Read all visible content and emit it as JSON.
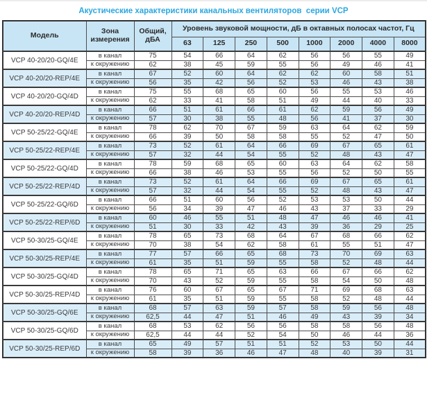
{
  "title": "Акустические характеристики канальных вентиляторов  серии VCP",
  "colors": {
    "accent_title": "#2ba7df",
    "header_bg": "#c8e5f5",
    "highlight_row_bg": "#d9edf9",
    "border": "#4d4d4d",
    "text": "#3a3a3a"
  },
  "table": {
    "headers": {
      "model": "Модель",
      "zone": "Зона измерения",
      "total": "Общий, дБА",
      "group": "Уровень звуковой мощности, дБ в октавных полосах частот, Гц",
      "frequencies": [
        "63",
        "125",
        "250",
        "500",
        "1000",
        "2000",
        "4000",
        "8000"
      ]
    },
    "zone_labels": {
      "duct": "в канал",
      "ambient": "к окружению"
    },
    "models": [
      {
        "name": "VCP 40-20/20-GQ/4E",
        "highlight": false,
        "duct": {
          "total": "75",
          "bands": [
            54,
            66,
            64,
            62,
            56,
            56,
            55,
            49
          ]
        },
        "ambient": {
          "total": "62",
          "bands": [
            38,
            45,
            59,
            55,
            56,
            49,
            46,
            41
          ]
        }
      },
      {
        "name": "VCP 40-20/20-REP/4E",
        "highlight": true,
        "duct": {
          "total": "67",
          "bands": [
            52,
            60,
            64,
            62,
            62,
            60,
            58,
            51
          ]
        },
        "ambient": {
          "total": "56",
          "bands": [
            35,
            42,
            56,
            52,
            53,
            46,
            43,
            38
          ]
        }
      },
      {
        "name": "VCP 40-20/20-GQ/4D",
        "highlight": false,
        "duct": {
          "total": "75",
          "bands": [
            55,
            68,
            65,
            60,
            56,
            55,
            53,
            46
          ]
        },
        "ambient": {
          "total": "62",
          "bands": [
            33,
            41,
            58,
            51,
            49,
            44,
            40,
            33
          ]
        }
      },
      {
        "name": "VCP 40-20/20-REP/4D",
        "highlight": true,
        "duct": {
          "total": "66",
          "bands": [
            51,
            61,
            66,
            61,
            62,
            59,
            56,
            49
          ]
        },
        "ambient": {
          "total": "57",
          "bands": [
            30,
            38,
            55,
            48,
            56,
            41,
            37,
            30
          ]
        }
      },
      {
        "name": "VCP 50-25/22-GQ/4E",
        "highlight": false,
        "duct": {
          "total": "78",
          "bands": [
            62,
            70,
            67,
            59,
            63,
            64,
            62,
            59
          ]
        },
        "ambient": {
          "total": "66",
          "bands": [
            39,
            50,
            58,
            58,
            55,
            52,
            47,
            50
          ]
        }
      },
      {
        "name": "VCP 50-25/22-REP/4E",
        "highlight": true,
        "duct": {
          "total": "73",
          "bands": [
            52,
            61,
            64,
            66,
            69,
            67,
            65,
            61
          ]
        },
        "ambient": {
          "total": "57",
          "bands": [
            32,
            44,
            54,
            55,
            52,
            48,
            43,
            47
          ]
        }
      },
      {
        "name": "VCP 50-25/22-GQ/4D",
        "highlight": false,
        "duct": {
          "total": "78",
          "bands": [
            59,
            68,
            65,
            60,
            63,
            64,
            62,
            58
          ]
        },
        "ambient": {
          "total": "66",
          "bands": [
            38,
            46,
            53,
            55,
            56,
            52,
            50,
            55
          ]
        }
      },
      {
        "name": "VCP 50-25/22-REP/4D",
        "highlight": true,
        "duct": {
          "total": "73",
          "bands": [
            52,
            61,
            64,
            66,
            69,
            67,
            65,
            61
          ]
        },
        "ambient": {
          "total": "57",
          "bands": [
            32,
            44,
            54,
            55,
            52,
            48,
            43,
            47
          ]
        }
      },
      {
        "name": "VCP 50-25/22-GQ/6D",
        "highlight": false,
        "duct": {
          "total": "66",
          "bands": [
            51,
            60,
            56,
            52,
            53,
            53,
            50,
            44
          ]
        },
        "ambient": {
          "total": "56",
          "bands": [
            34,
            39,
            47,
            46,
            43,
            37,
            33,
            29
          ]
        }
      },
      {
        "name": "VCP 50-25/22-REP/6D",
        "highlight": true,
        "duct": {
          "total": "60",
          "bands": [
            46,
            55,
            51,
            48,
            47,
            46,
            46,
            41
          ]
        },
        "ambient": {
          "total": "51",
          "bands": [
            30,
            33,
            42,
            43,
            39,
            36,
            29,
            25
          ]
        }
      },
      {
        "name": "VCP 50-30/25-GQ/4E",
        "highlight": false,
        "duct": {
          "total": "78",
          "bands": [
            65,
            73,
            68,
            64,
            67,
            68,
            66,
            62
          ]
        },
        "ambient": {
          "total": "70",
          "bands": [
            38,
            54,
            62,
            58,
            61,
            55,
            51,
            47
          ]
        }
      },
      {
        "name": "VCP 50-30/25-REP/4E",
        "highlight": true,
        "duct": {
          "total": "77",
          "bands": [
            57,
            66,
            65,
            68,
            73,
            70,
            69,
            63
          ]
        },
        "ambient": {
          "total": "61",
          "bands": [
            35,
            51,
            59,
            55,
            58,
            52,
            48,
            44
          ]
        }
      },
      {
        "name": "VCP 50-30/25-GQ/4D",
        "highlight": false,
        "duct": {
          "total": "78",
          "bands": [
            65,
            71,
            65,
            63,
            66,
            67,
            66,
            62
          ]
        },
        "ambient": {
          "total": "70",
          "bands": [
            43,
            52,
            59,
            55,
            58,
            54,
            50,
            48
          ]
        }
      },
      {
        "name": "VCP 50-30/25-REP/4D",
        "highlight": false,
        "duct": {
          "total": "76",
          "bands": [
            60,
            67,
            65,
            67,
            71,
            69,
            68,
            63
          ]
        },
        "ambient": {
          "total": "61",
          "bands": [
            35,
            51,
            59,
            55,
            58,
            52,
            48,
            44
          ]
        }
      },
      {
        "name": "VCP 50-30/25-GQ/6E",
        "highlight": true,
        "duct": {
          "total": "68",
          "bands": [
            57,
            63,
            59,
            57,
            58,
            59,
            56,
            48
          ]
        },
        "ambient": {
          "total": "62,5",
          "bands": [
            44,
            47,
            51,
            46,
            49,
            43,
            39,
            34
          ]
        }
      },
      {
        "name": "VCP 50-30/25-GQ/6D",
        "highlight": false,
        "duct": {
          "total": "68",
          "bands": [
            53,
            62,
            56,
            56,
            58,
            58,
            56,
            48
          ]
        },
        "ambient": {
          "total": "62,5",
          "bands": [
            44,
            44,
            52,
            54,
            50,
            46,
            44,
            36
          ]
        }
      },
      {
        "name": "VCP 50-30/25-REP/6D",
        "highlight": true,
        "duct": {
          "total": "65",
          "bands": [
            49,
            57,
            51,
            51,
            52,
            53,
            50,
            44
          ]
        },
        "ambient": {
          "total": "58",
          "bands": [
            39,
            36,
            46,
            47,
            48,
            40,
            39,
            31
          ]
        }
      }
    ]
  }
}
